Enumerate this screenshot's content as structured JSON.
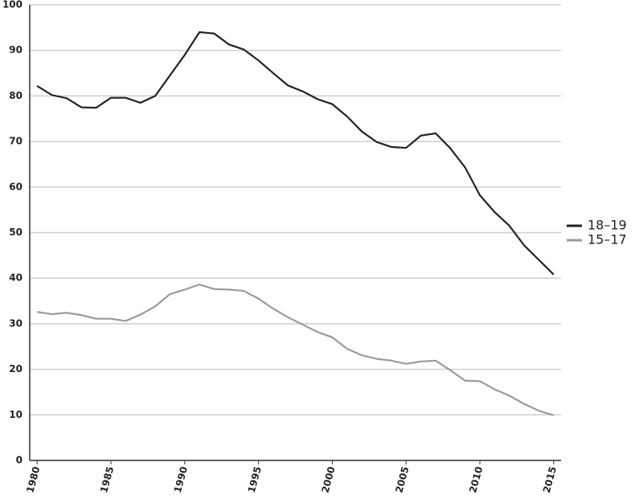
{
  "chart_data": {
    "type": "line",
    "x": [
      1980,
      1981,
      1982,
      1983,
      1984,
      1985,
      1986,
      1987,
      1988,
      1989,
      1990,
      1991,
      1992,
      1993,
      1994,
      1995,
      1996,
      1997,
      1998,
      1999,
      2000,
      2001,
      2002,
      2003,
      2004,
      2005,
      2006,
      2007,
      2008,
      2009,
      2010,
      2011,
      2012,
      2013,
      2014,
      2015
    ],
    "series": [
      {
        "name": "18–19",
        "color": "#222222",
        "values": [
          82.2,
          80.2,
          79.5,
          77.5,
          77.4,
          79.6,
          79.6,
          78.5,
          80,
          84.5,
          89,
          94,
          93.7,
          91.3,
          90.2,
          87.8,
          85,
          82.3,
          81,
          79.3,
          78.2,
          75.5,
          72.2,
          69.9,
          68.8,
          68.6,
          71.3,
          71.8,
          68.5,
          64.3,
          58.2,
          54.5,
          51.5,
          47.2,
          44,
          40.8
        ]
      },
      {
        "name": "15–17",
        "color": "#9a9a9a",
        "values": [
          32.6,
          32.1,
          32.4,
          31.9,
          31.1,
          31.1,
          30.6,
          32,
          33.8,
          36.5,
          37.5,
          38.6,
          37.6,
          37.5,
          37.2,
          35.5,
          33.3,
          31.4,
          29.8,
          28.2,
          27,
          24.5,
          23.1,
          22.3,
          21.9,
          21.2,
          21.7,
          21.9,
          19.8,
          17.5,
          17.4,
          15.6,
          14.2,
          12.4,
          10.9,
          9.9
        ]
      }
    ],
    "xlim": [
      1979.5,
      2015.5
    ],
    "xticks": [
      1980,
      1985,
      1990,
      1995,
      2000,
      2005,
      2010,
      2015
    ],
    "ylim": [
      0,
      100
    ],
    "yticks": [
      0,
      10,
      20,
      30,
      40,
      50,
      60,
      70,
      80,
      90,
      100
    ],
    "grid": true,
    "legend": "right"
  }
}
